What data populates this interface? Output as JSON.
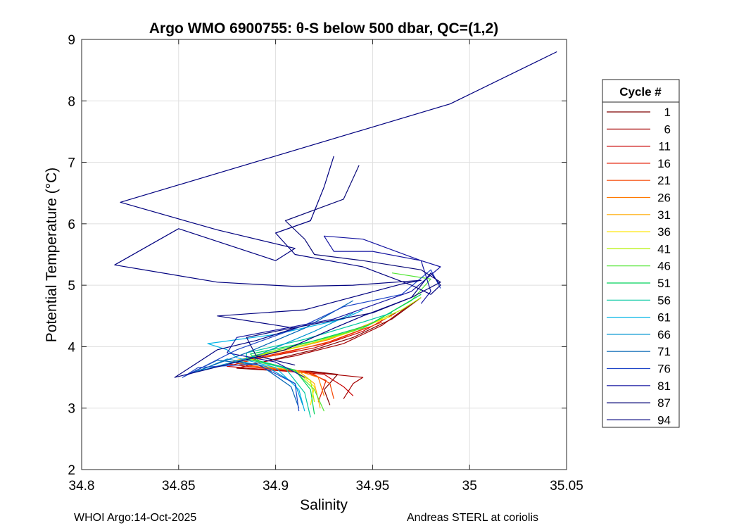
{
  "chart_data": {
    "type": "line",
    "title": "Argo WMO 6900755: θ-S below 500 dbar,  QC=(1,2)",
    "xlabel": "Salinity",
    "ylabel": "Potential Temperature (°C)",
    "xlim": [
      34.8,
      35.05
    ],
    "ylim": [
      2,
      9
    ],
    "xticks": [
      34.8,
      34.85,
      34.9,
      34.95,
      35,
      35.05
    ],
    "xtick_labels": [
      "34.8",
      "34.85",
      "34.9",
      "34.95",
      "35",
      "35.05"
    ],
    "yticks": [
      2,
      3,
      4,
      5,
      6,
      7,
      8,
      9
    ],
    "ytick_labels": [
      "2",
      "3",
      "4",
      "5",
      "6",
      "7",
      "8",
      "9"
    ],
    "grid": true,
    "legend_title": "Cycle #",
    "legend_position": "right-outside",
    "series": [
      {
        "name": "1",
        "color": "#7f0000",
        "points": [
          [
            34.928,
            3.05
          ],
          [
            34.925,
            3.3
          ],
          [
            34.932,
            3.55
          ],
          [
            34.918,
            3.6
          ],
          [
            34.895,
            3.62
          ],
          [
            34.88,
            3.65
          ],
          [
            34.9,
            3.8
          ],
          [
            34.92,
            3.95
          ],
          [
            34.94,
            4.15
          ],
          [
            34.96,
            4.45
          ],
          [
            34.975,
            4.8
          ]
        ]
      },
      {
        "name": "6",
        "color": "#a50000",
        "points": [
          [
            34.935,
            3.15
          ],
          [
            34.94,
            3.4
          ],
          [
            34.945,
            3.5
          ],
          [
            34.92,
            3.58
          ],
          [
            34.9,
            3.63
          ],
          [
            34.885,
            3.7
          ],
          [
            34.91,
            3.85
          ],
          [
            34.935,
            4.05
          ],
          [
            34.955,
            4.35
          ],
          [
            34.97,
            4.7
          ]
        ]
      },
      {
        "name": "11",
        "color": "#c80000",
        "points": [
          [
            34.94,
            3.2
          ],
          [
            34.935,
            3.35
          ],
          [
            34.925,
            3.55
          ],
          [
            34.905,
            3.6
          ],
          [
            34.875,
            3.68
          ],
          [
            34.89,
            3.8
          ],
          [
            34.92,
            3.98
          ],
          [
            34.945,
            4.25
          ],
          [
            34.962,
            4.55
          ]
        ]
      },
      {
        "name": "16",
        "color": "#e61900",
        "points": [
          [
            34.922,
            3.1
          ],
          [
            34.926,
            3.45
          ],
          [
            34.915,
            3.6
          ],
          [
            34.893,
            3.65
          ],
          [
            34.875,
            3.72
          ],
          [
            34.9,
            3.88
          ],
          [
            34.925,
            4.05
          ],
          [
            34.948,
            4.32
          ]
        ]
      },
      {
        "name": "21",
        "color": "#f54500",
        "points": [
          [
            34.93,
            3.15
          ],
          [
            34.928,
            3.4
          ],
          [
            34.918,
            3.58
          ],
          [
            34.898,
            3.64
          ],
          [
            34.88,
            3.73
          ],
          [
            34.905,
            3.9
          ],
          [
            34.93,
            4.1
          ],
          [
            34.955,
            4.4
          ]
        ]
      },
      {
        "name": "26",
        "color": "#ff7a00",
        "points": [
          [
            34.925,
            3.2
          ],
          [
            34.922,
            3.5
          ],
          [
            34.91,
            3.62
          ],
          [
            34.888,
            3.68
          ],
          [
            34.878,
            3.76
          ],
          [
            34.902,
            3.92
          ],
          [
            34.928,
            4.12
          ],
          [
            34.952,
            4.42
          ]
        ]
      },
      {
        "name": "31",
        "color": "#ffaa00",
        "points": [
          [
            34.923,
            3.0
          ],
          [
            34.92,
            3.4
          ],
          [
            34.912,
            3.6
          ],
          [
            34.89,
            3.7
          ],
          [
            34.88,
            3.78
          ],
          [
            34.905,
            3.95
          ],
          [
            34.93,
            4.15
          ],
          [
            34.955,
            4.45
          ]
        ]
      },
      {
        "name": "36",
        "color": "#ffe600",
        "points": [
          [
            34.918,
            3.05
          ],
          [
            34.92,
            3.35
          ],
          [
            34.91,
            3.62
          ],
          [
            34.895,
            3.72
          ],
          [
            34.885,
            3.8
          ],
          [
            34.91,
            3.98
          ],
          [
            34.935,
            4.2
          ],
          [
            34.96,
            4.5
          ]
        ]
      },
      {
        "name": "41",
        "color": "#b4f000",
        "points": [
          [
            34.92,
            3.1
          ],
          [
            34.918,
            3.45
          ],
          [
            34.908,
            3.63
          ],
          [
            34.893,
            3.74
          ],
          [
            34.885,
            3.82
          ],
          [
            34.912,
            4.0
          ],
          [
            34.94,
            4.25
          ],
          [
            34.965,
            4.6
          ],
          [
            34.975,
            4.8
          ]
        ]
      },
      {
        "name": "46",
        "color": "#50e632",
        "points": [
          [
            34.925,
            2.95
          ],
          [
            34.92,
            3.3
          ],
          [
            34.91,
            3.6
          ],
          [
            34.892,
            3.76
          ],
          [
            34.888,
            3.85
          ],
          [
            34.915,
            4.05
          ],
          [
            34.945,
            4.3
          ],
          [
            34.97,
            4.75
          ],
          [
            34.98,
            5.1
          ],
          [
            34.96,
            5.2
          ]
        ]
      },
      {
        "name": "51",
        "color": "#00d25a",
        "points": [
          [
            34.92,
            2.9
          ],
          [
            34.918,
            3.3
          ],
          [
            34.91,
            3.62
          ],
          [
            34.89,
            3.78
          ],
          [
            34.887,
            3.88
          ],
          [
            34.918,
            4.08
          ],
          [
            34.948,
            4.35
          ],
          [
            34.975,
            4.85
          ]
        ]
      },
      {
        "name": "56",
        "color": "#00c8a0",
        "points": [
          [
            34.918,
            2.85
          ],
          [
            34.915,
            3.25
          ],
          [
            34.905,
            3.65
          ],
          [
            34.885,
            3.8
          ],
          [
            34.885,
            3.9
          ],
          [
            34.915,
            4.12
          ],
          [
            34.945,
            4.4
          ],
          [
            34.96,
            4.55
          ]
        ]
      },
      {
        "name": "61",
        "color": "#00b4e6",
        "points": [
          [
            34.915,
            2.95
          ],
          [
            34.912,
            3.3
          ],
          [
            34.9,
            3.66
          ],
          [
            34.88,
            3.82
          ],
          [
            34.875,
            3.95
          ],
          [
            34.865,
            4.05
          ],
          [
            34.9,
            4.2
          ],
          [
            34.935,
            4.45
          ],
          [
            34.945,
            4.6
          ]
        ]
      },
      {
        "name": "66",
        "color": "#0096d2",
        "points": [
          [
            34.914,
            3.05
          ],
          [
            34.91,
            3.4
          ],
          [
            34.895,
            3.68
          ],
          [
            34.875,
            3.8
          ],
          [
            34.86,
            3.6
          ],
          [
            34.89,
            3.85
          ],
          [
            34.92,
            4.25
          ],
          [
            34.94,
            4.55
          ]
        ]
      },
      {
        "name": "71",
        "color": "#0064b4",
        "points": [
          [
            34.912,
            3.0
          ],
          [
            34.908,
            3.35
          ],
          [
            34.892,
            3.7
          ],
          [
            34.87,
            3.78
          ],
          [
            34.855,
            3.55
          ],
          [
            34.885,
            3.9
          ],
          [
            34.915,
            4.3
          ],
          [
            34.94,
            4.75
          ]
        ]
      },
      {
        "name": "76",
        "color": "#1e46c8",
        "points": [
          [
            34.912,
            2.95
          ],
          [
            34.91,
            3.4
          ],
          [
            34.89,
            3.72
          ],
          [
            34.86,
            3.66
          ],
          [
            34.852,
            3.5
          ],
          [
            34.88,
            3.95
          ],
          [
            34.915,
            4.35
          ],
          [
            34.935,
            4.65
          ],
          [
            34.965,
            4.85
          ],
          [
            34.98,
            5.25
          ],
          [
            34.985,
            4.95
          ]
        ]
      },
      {
        "name": "81",
        "color": "#1414a0",
        "points": [
          [
            34.915,
            3.5
          ],
          [
            34.9,
            3.75
          ],
          [
            34.875,
            3.9
          ],
          [
            34.88,
            4.15
          ],
          [
            34.905,
            4.3
          ],
          [
            34.93,
            4.45
          ],
          [
            34.97,
            4.9
          ],
          [
            34.985,
            5.3
          ],
          [
            34.975,
            5.4
          ],
          [
            34.95,
            5.55
          ],
          [
            34.93,
            5.55
          ],
          [
            34.925,
            5.8
          ],
          [
            34.945,
            5.75
          ],
          [
            34.975,
            5.4
          ],
          [
            34.98,
            4.9
          ],
          [
            34.975,
            4.7
          ]
        ]
      },
      {
        "name": "87",
        "color": "#0a0a78",
        "points": [
          [
            34.91,
            3.7
          ],
          [
            34.89,
            3.85
          ],
          [
            34.885,
            4.15
          ],
          [
            34.9,
            4.25
          ],
          [
            34.925,
            4.4
          ],
          [
            34.95,
            4.55
          ],
          [
            34.97,
            4.8
          ],
          [
            34.985,
            5.05
          ],
          [
            34.975,
            5.25
          ],
          [
            34.945,
            5.4
          ],
          [
            34.92,
            5.5
          ],
          [
            34.915,
            5.75
          ],
          [
            34.905,
            6.05
          ],
          [
            34.935,
            6.4
          ],
          [
            34.943,
            6.95
          ]
        ]
      },
      {
        "name": "94",
        "color": "#00007f",
        "points": [
          [
            35.045,
            8.8
          ],
          [
            34.99,
            7.95
          ],
          [
            34.82,
            6.35
          ],
          [
            34.87,
            5.9
          ],
          [
            34.91,
            5.6
          ],
          [
            34.9,
            5.4
          ],
          [
            34.85,
            5.92
          ],
          [
            34.817,
            5.33
          ],
          [
            34.87,
            5.05
          ],
          [
            34.91,
            4.98
          ],
          [
            34.94,
            5.0
          ],
          [
            34.975,
            5.08
          ],
          [
            34.965,
            5.02
          ],
          [
            34.915,
            4.6
          ],
          [
            34.87,
            4.5
          ],
          [
            34.91,
            4.3
          ],
          [
            34.89,
            4.1
          ],
          [
            34.87,
            3.95
          ],
          [
            34.848,
            3.5
          ],
          [
            34.88,
            3.75
          ],
          [
            34.905,
            3.95
          ],
          [
            34.93,
            4.3
          ],
          [
            34.945,
            4.5
          ],
          [
            34.97,
            4.8
          ],
          [
            34.98,
            5.2
          ],
          [
            34.985,
            5.0
          ],
          [
            34.98,
            4.85
          ],
          [
            34.97,
            5.0
          ],
          [
            34.945,
            5.3
          ],
          [
            34.91,
            5.5
          ],
          [
            34.9,
            5.85
          ],
          [
            34.918,
            6.05
          ],
          [
            34.925,
            6.6
          ],
          [
            34.93,
            7.1
          ]
        ]
      }
    ]
  },
  "footer": {
    "left": "WHOI Argo:14-Oct-2025",
    "right": "Andreas STERL at coriolis"
  }
}
